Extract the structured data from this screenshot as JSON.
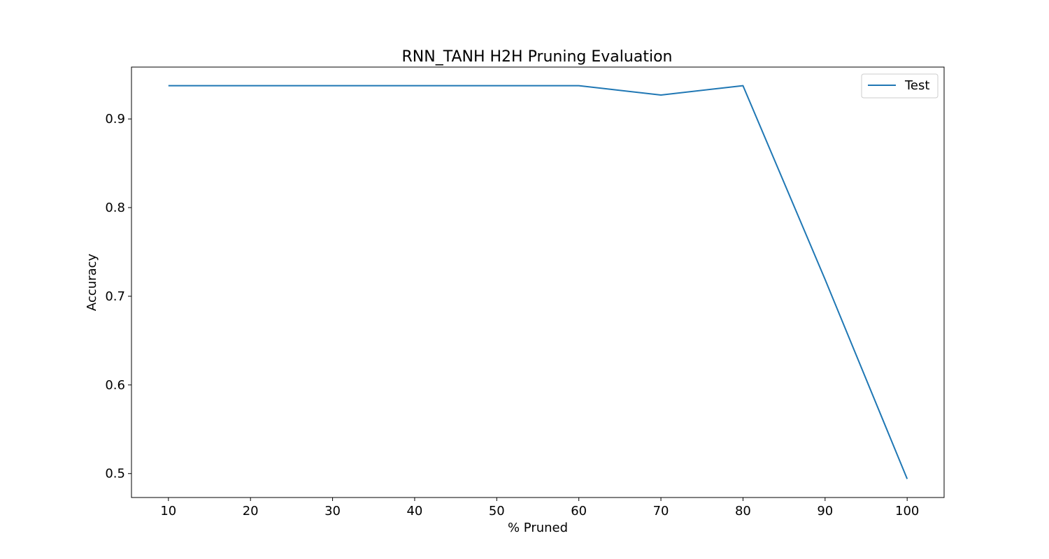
{
  "chart_data": {
    "type": "line",
    "title": "RNN_TANH H2H Pruning Evaluation",
    "xlabel": "% Pruned",
    "ylabel": "Accuracy",
    "x": [
      10,
      20,
      30,
      40,
      50,
      60,
      70,
      80,
      90,
      100
    ],
    "xlim": [
      5.5,
      104.5
    ],
    "ylim": [
      0.473,
      0.9585
    ],
    "xticks": [
      "10",
      "20",
      "30",
      "40",
      "50",
      "60",
      "70",
      "80",
      "90",
      "100"
    ],
    "yticks": [
      "0.5",
      "0.6",
      "0.7",
      "0.8",
      "0.9"
    ],
    "grid": false,
    "legend_position": "top-right",
    "series": [
      {
        "name": "Test",
        "color": "#1f77b4",
        "values": [
          0.9375,
          0.9375,
          0.9375,
          0.9375,
          0.9375,
          0.9375,
          0.927,
          0.9375,
          0.719,
          0.494
        ]
      }
    ]
  }
}
